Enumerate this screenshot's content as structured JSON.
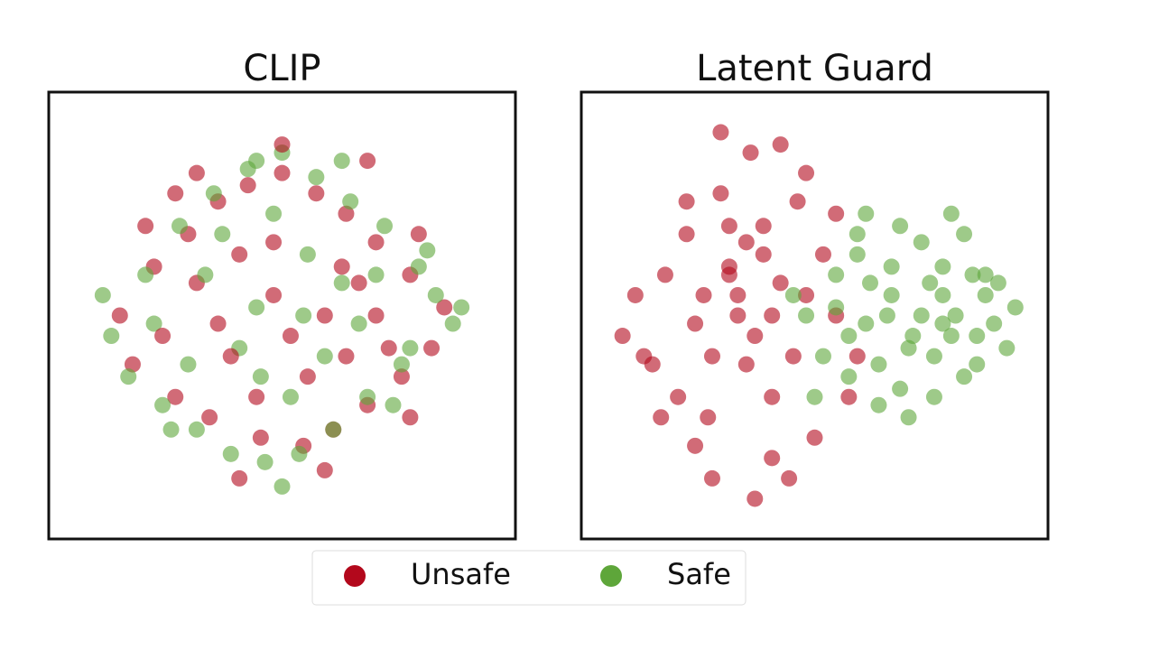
{
  "chart_data": [
    {
      "type": "scatter",
      "title": "CLIP",
      "xlim": [
        0,
        100
      ],
      "ylim": [
        0,
        100
      ],
      "series": [
        {
          "name": "Unsafe",
          "color": "#b3081c",
          "x": [
            12,
            20,
            28,
            35,
            42,
            50,
            58,
            65,
            72,
            80,
            88,
            15,
            25,
            33,
            45,
            55,
            62,
            70,
            78,
            85,
            18,
            30,
            40,
            48,
            52,
            60,
            68,
            75,
            82,
            22,
            38,
            44,
            56,
            64,
            72,
            50,
            30,
            60,
            40,
            70,
            25,
            80,
            48,
            35,
            65
          ],
          "y": [
            50,
            62,
            70,
            78,
            82,
            85,
            80,
            75,
            68,
            60,
            52,
            38,
            30,
            25,
            20,
            18,
            22,
            28,
            35,
            42,
            72,
            58,
            65,
            55,
            45,
            50,
            58,
            42,
            70,
            45,
            40,
            30,
            35,
            62,
            50,
            92,
            85,
            12,
            10,
            88,
            80,
            25,
            68,
            48,
            40
          ]
        },
        {
          "name": "Safe",
          "color": "#5ea63a",
          "x": [
            10,
            18,
            26,
            34,
            42,
            50,
            58,
            66,
            74,
            82,
            90,
            14,
            22,
            30,
            38,
            46,
            54,
            62,
            70,
            78,
            86,
            20,
            32,
            44,
            56,
            68,
            80,
            28,
            40,
            52,
            64,
            76,
            36,
            48,
            60,
            72,
            84,
            24,
            44,
            64,
            50,
            55,
            45,
            92,
            8
          ],
          "y": [
            45,
            60,
            72,
            80,
            86,
            90,
            84,
            78,
            72,
            62,
            48,
            35,
            28,
            22,
            16,
            14,
            16,
            22,
            30,
            38,
            55,
            48,
            60,
            52,
            65,
            48,
            42,
            38,
            42,
            30,
            58,
            28,
            70,
            75,
            40,
            60,
            66,
            22,
            88,
            88,
            8,
            50,
            35,
            52,
            55
          ]
        }
      ]
    },
    {
      "type": "scatter",
      "title": "Latent Guard",
      "xlim": [
        0,
        100
      ],
      "ylim": [
        0,
        100
      ],
      "series": [
        {
          "name": "Unsafe",
          "color": "#b3081c",
          "x": [
            5,
            8,
            12,
            15,
            18,
            20,
            22,
            25,
            28,
            30,
            32,
            35,
            38,
            40,
            42,
            45,
            48,
            50,
            52,
            55,
            58,
            10,
            14,
            24,
            26,
            34,
            36,
            44,
            46,
            28,
            30,
            32,
            34,
            38,
            40,
            20,
            22,
            36,
            42,
            48,
            30,
            26,
            40,
            55,
            60
          ],
          "y": [
            45,
            55,
            38,
            60,
            30,
            70,
            48,
            25,
            80,
            62,
            55,
            90,
            72,
            15,
            58,
            40,
            85,
            20,
            65,
            50,
            30,
            40,
            25,
            55,
            10,
            68,
            45,
            10,
            78,
            95,
            60,
            50,
            38,
            65,
            30,
            78,
            18,
            5,
            92,
            55,
            72,
            40,
            50,
            75,
            40
          ]
        },
        {
          "name": "Safe",
          "color": "#5ea63a",
          "x": [
            48,
            52,
            55,
            58,
            60,
            62,
            65,
            68,
            70,
            72,
            75,
            78,
            80,
            82,
            85,
            88,
            90,
            92,
            95,
            97,
            55,
            60,
            65,
            70,
            75,
            80,
            85,
            90,
            58,
            63,
            68,
            73,
            78,
            83,
            88,
            93,
            50,
            67,
            77,
            87,
            72,
            62,
            82,
            45,
            80
          ],
          "y": [
            50,
            40,
            60,
            35,
            65,
            48,
            28,
            55,
            72,
            42,
            50,
            30,
            62,
            45,
            70,
            38,
            55,
            48,
            42,
            52,
            52,
            70,
            38,
            32,
            68,
            55,
            35,
            60,
            45,
            58,
            62,
            45,
            40,
            50,
            45,
            58,
            30,
            50,
            58,
            60,
            25,
            75,
            75,
            55,
            48
          ]
        }
      ]
    }
  ]
}
